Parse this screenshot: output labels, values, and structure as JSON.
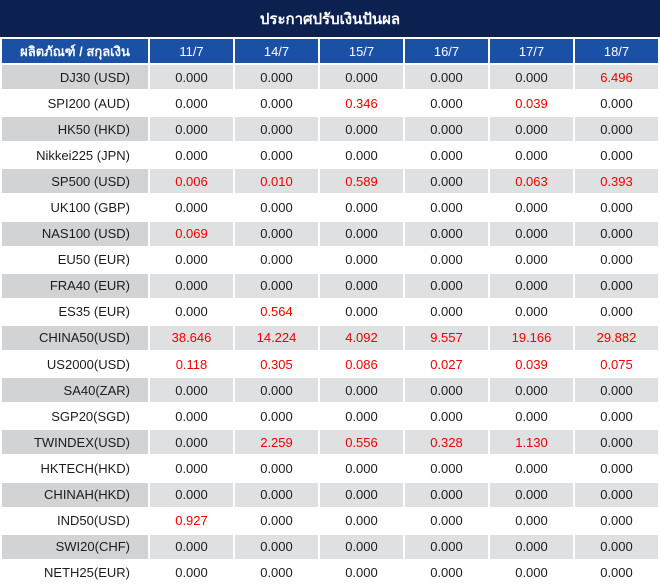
{
  "title": "ประกาศปรับเงินปันผล",
  "colors": {
    "title_bar": "#0d2150",
    "header_row": "#1a51a5",
    "row_label_gray": "#d1d3d4",
    "row_value_gray": "#dfe0e1",
    "value_text": "#1c1c1c",
    "value_highlight_red": "#f00000"
  },
  "table": {
    "product_header": "ผลิตภัณฑ์ / สกุลเงิน",
    "date_headers": [
      "11/7",
      "14/7",
      "15/7",
      "16/7",
      "17/7",
      "18/7"
    ],
    "zero_value": "0.000",
    "rows": [
      {
        "label": "DJ30 (USD)",
        "values": [
          "0.000",
          "0.000",
          "0.000",
          "0.000",
          "0.000",
          "6.496"
        ]
      },
      {
        "label": "SPI200 (AUD)",
        "values": [
          "0.000",
          "0.000",
          "0.346",
          "0.000",
          "0.039",
          "0.000"
        ]
      },
      {
        "label": "HK50 (HKD)",
        "values": [
          "0.000",
          "0.000",
          "0.000",
          "0.000",
          "0.000",
          "0.000"
        ]
      },
      {
        "label": "Nikkei225 (JPN)",
        "values": [
          "0.000",
          "0.000",
          "0.000",
          "0.000",
          "0.000",
          "0.000"
        ]
      },
      {
        "label": "SP500 (USD)",
        "values": [
          "0.006",
          "0.010",
          "0.589",
          "0.000",
          "0.063",
          "0.393"
        ]
      },
      {
        "label": "UK100 (GBP)",
        "values": [
          "0.000",
          "0.000",
          "0.000",
          "0.000",
          "0.000",
          "0.000"
        ]
      },
      {
        "label": "NAS100 (USD)",
        "values": [
          "0.069",
          "0.000",
          "0.000",
          "0.000",
          "0.000",
          "0.000"
        ]
      },
      {
        "label": "EU50 (EUR)",
        "values": [
          "0.000",
          "0.000",
          "0.000",
          "0.000",
          "0.000",
          "0.000"
        ]
      },
      {
        "label": "FRA40 (EUR)",
        "values": [
          "0.000",
          "0.000",
          "0.000",
          "0.000",
          "0.000",
          "0.000"
        ]
      },
      {
        "label": "ES35 (EUR)",
        "values": [
          "0.000",
          "0.564",
          "0.000",
          "0.000",
          "0.000",
          "0.000"
        ]
      },
      {
        "label": "CHINA50(USD)",
        "values": [
          "38.646",
          "14.224",
          "4.092",
          "9.557",
          "19.166",
          "29.882"
        ]
      },
      {
        "label": "US2000(USD)",
        "values": [
          "0.118",
          "0.305",
          "0.086",
          "0.027",
          "0.039",
          "0.075"
        ]
      },
      {
        "label": "SA40(ZAR)",
        "values": [
          "0.000",
          "0.000",
          "0.000",
          "0.000",
          "0.000",
          "0.000"
        ]
      },
      {
        "label": "SGP20(SGD)",
        "values": [
          "0.000",
          "0.000",
          "0.000",
          "0.000",
          "0.000",
          "0.000"
        ]
      },
      {
        "label": "TWINDEX(USD)",
        "values": [
          "0.000",
          "2.259",
          "0.556",
          "0.328",
          "1.130",
          "0.000"
        ]
      },
      {
        "label": "HKTECH(HKD)",
        "values": [
          "0.000",
          "0.000",
          "0.000",
          "0.000",
          "0.000",
          "0.000"
        ]
      },
      {
        "label": "CHINAH(HKD)",
        "values": [
          "0.000",
          "0.000",
          "0.000",
          "0.000",
          "0.000",
          "0.000"
        ]
      },
      {
        "label": "IND50(USD)",
        "values": [
          "0.927",
          "0.000",
          "0.000",
          "0.000",
          "0.000",
          "0.000"
        ]
      },
      {
        "label": "SWI20(CHF)",
        "values": [
          "0.000",
          "0.000",
          "0.000",
          "0.000",
          "0.000",
          "0.000"
        ]
      },
      {
        "label": "NETH25(EUR)",
        "values": [
          "0.000",
          "0.000",
          "0.000",
          "0.000",
          "0.000",
          "0.000"
        ]
      }
    ]
  }
}
